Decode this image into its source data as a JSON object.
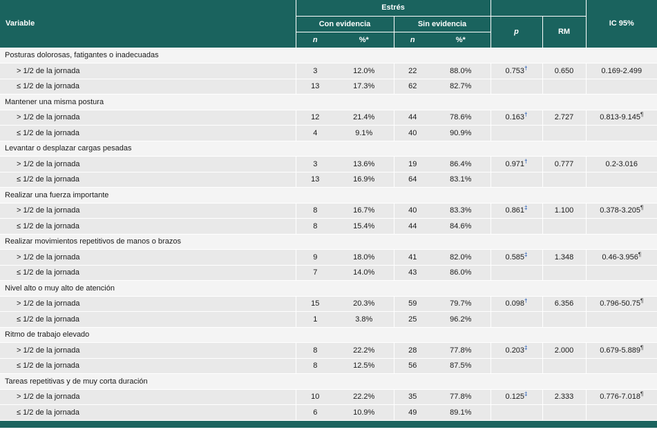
{
  "theme": {
    "header-bg": "#1A635E",
    "row-gray": "#E9E9E9",
    "row-light": "#F4F4F4",
    "border-white": "#FFFFFF",
    "body-text": "#1A1A1A",
    "footnote-blue": "#0645AD"
  },
  "header": {
    "variable": "Variable",
    "estres": "Estrés",
    "con_evidencia": "Con evidencia",
    "sin_evidencia": "Sin evidencia",
    "n": "n",
    "pct": "%*",
    "p": "p",
    "rm": "RM",
    "ic95": "IC 95%"
  },
  "groups": [
    {
      "label": "Posturas dolorosas, fatigantes o inadecuadas",
      "rows": [
        {
          "label": "> 1/2 de la jornada",
          "n_con": "3",
          "pct_con": "12.0%",
          "n_sin": "22",
          "pct_sin": "88.0%",
          "p_value": "0.753",
          "p_mark": "†",
          "rm": "0.650",
          "ic": "0.169-2.499",
          "ic_mark": ""
        },
        {
          "label": "≤ 1/2 de la jornada",
          "n_con": "13",
          "pct_con": "17.3%",
          "n_sin": "62",
          "pct_sin": "82.7%"
        }
      ]
    },
    {
      "label": "Mantener una misma postura",
      "rows": [
        {
          "label": "> 1/2 de la jornada",
          "n_con": "12",
          "pct_con": "21.4%",
          "n_sin": "44",
          "pct_sin": "78.6%",
          "p_value": "0.163",
          "p_mark": "†",
          "rm": "2.727",
          "ic": "0.813-9.145",
          "ic_mark": "¶"
        },
        {
          "label": "≤ 1/2 de la jornada",
          "n_con": "4",
          "pct_con": "9.1%",
          "n_sin": "40",
          "pct_sin": "90.9%"
        }
      ]
    },
    {
      "label": "Levantar o desplazar cargas pesadas",
      "rows": [
        {
          "label": "> 1/2 de la jornada",
          "n_con": "3",
          "pct_con": "13.6%",
          "n_sin": "19",
          "pct_sin": "86.4%",
          "p_value": "0.971",
          "p_mark": "†",
          "rm": "0.777",
          "ic": "0.2-3.016",
          "ic_mark": ""
        },
        {
          "label": "≤ 1/2 de la jornada",
          "n_con": "13",
          "pct_con": "16.9%",
          "n_sin": "64",
          "pct_sin": "83.1%"
        }
      ]
    },
    {
      "label": "Realizar una fuerza importante",
      "rows": [
        {
          "label": "> 1/2 de la jornada",
          "n_con": "8",
          "pct_con": "16.7%",
          "n_sin": "40",
          "pct_sin": "83.3%",
          "p_value": "0.861",
          "p_mark": "‡",
          "rm": "1.100",
          "ic": "0.378-3.205",
          "ic_mark": "¶"
        },
        {
          "label": "≤ 1/2 de la jornada",
          "n_con": "8",
          "pct_con": "15.4%",
          "n_sin": "44",
          "pct_sin": "84.6%"
        }
      ]
    },
    {
      "label": "Realizar movimientos repetitivos de manos o brazos",
      "rows": [
        {
          "label": "> 1/2 de la jornada",
          "n_con": "9",
          "pct_con": "18.0%",
          "n_sin": "41",
          "pct_sin": "82.0%",
          "p_value": "0.585",
          "p_mark": "‡",
          "rm": "1.348",
          "ic": "0.46-3.956",
          "ic_mark": "¶"
        },
        {
          "label": "≤ 1/2 de la jornada",
          "n_con": "7",
          "pct_con": "14.0%",
          "n_sin": "43",
          "pct_sin": "86.0%"
        }
      ]
    },
    {
      "label": "Nivel alto o muy alto de atención",
      "rows": [
        {
          "label": "> 1/2 de la jornada",
          "n_con": "15",
          "pct_con": "20.3%",
          "n_sin": "59",
          "pct_sin": "79.7%",
          "p_value": "0.098",
          "p_mark": "†",
          "rm": "6.356",
          "ic": "0.796-50.75",
          "ic_mark": "¶"
        },
        {
          "label": "≤ 1/2 de la jornada",
          "n_con": "1",
          "pct_con": "3.8%",
          "n_sin": "25",
          "pct_sin": "96.2%"
        }
      ]
    },
    {
      "label": "Ritmo de trabajo elevado",
      "rows": [
        {
          "label": "> 1/2 de la jornada",
          "n_con": "8",
          "pct_con": "22.2%",
          "n_sin": "28",
          "pct_sin": "77.8%",
          "p_value": "0.203",
          "p_mark": "‡",
          "rm": "2.000",
          "ic": "0.679-5.889",
          "ic_mark": "¶"
        },
        {
          "label": "≤ 1/2 de la jornada",
          "n_con": "8",
          "pct_con": "12.5%",
          "n_sin": "56",
          "pct_sin": "87.5%"
        }
      ]
    },
    {
      "label": "Tareas repetitivas y de muy corta duración",
      "rows": [
        {
          "label": "> 1/2 de la jornada",
          "n_con": "10",
          "pct_con": "22.2%",
          "n_sin": "35",
          "pct_sin": "77.8%",
          "p_value": "0.125",
          "p_mark": "‡",
          "rm": "2.333",
          "ic": "0.776-7.018",
          "ic_mark": "¶"
        },
        {
          "label": "≤ 1/2 de la jornada",
          "n_con": "6",
          "pct_con": "10.9%",
          "n_sin": "49",
          "pct_sin": "89.1%"
        }
      ]
    }
  ]
}
